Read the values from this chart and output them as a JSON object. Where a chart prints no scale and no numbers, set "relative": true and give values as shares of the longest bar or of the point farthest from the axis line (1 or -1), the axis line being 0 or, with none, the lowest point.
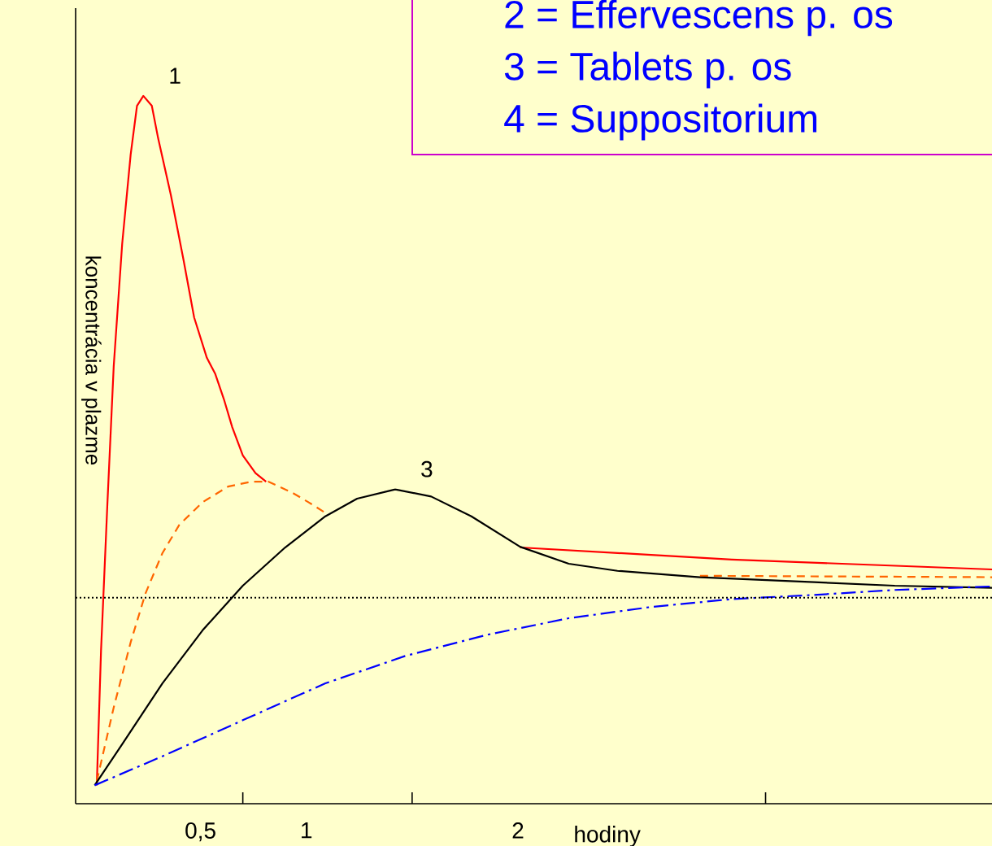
{
  "chart_data": {
    "type": "line",
    "relative": true,
    "xlabel": "hodiny",
    "ylabel": "koncentrácia v plazme",
    "xlim": [
      -0.09,
      4.24
    ],
    "xticks": [
      {
        "value": 0.5,
        "label": "0,5"
      },
      {
        "value": 1,
        "label": "1"
      },
      {
        "value": 2,
        "label": "2"
      },
      {
        "value": 0.7,
        "label": null
      },
      {
        "value": 1.5,
        "label": null
      },
      {
        "value": 3.17,
        "label": null
      }
    ],
    "tick_labels": "x",
    "marker": "none",
    "series": [
      {
        "name": "1",
        "color": "#ff0000",
        "line_style": "solid",
        "x": [
          0.01,
          0.03,
          0.06,
          0.09,
          0.13,
          0.17,
          0.2,
          0.23,
          0.27,
          0.3,
          0.36,
          0.42,
          0.47,
          0.53,
          0.57,
          0.61,
          0.65,
          0.7,
          0.76,
          0.81,
          1.4,
          2.01,
          3.01,
          4.24
        ],
        "values": [
          0.026,
          0.216,
          0.423,
          0.618,
          0.791,
          0.917,
          0.986,
          1,
          0.986,
          0.94,
          0.86,
          0.768,
          0.687,
          0.63,
          0.607,
          0.572,
          0.532,
          0.492,
          0.467,
          0.455,
          null,
          0.362,
          0.345,
          0.331
        ]
      },
      {
        "color": "#ff6600",
        "line_style": "dashed",
        "x": [
          0.01,
          0.09,
          0.17,
          0.24,
          0.32,
          0.4,
          0.51,
          0.63,
          0.74,
          0.82,
          0.93,
          1.01,
          1.09,
          2.5,
          2.86,
          4.24
        ],
        "values": [
          0.032,
          0.136,
          0.228,
          0.297,
          0.354,
          0.394,
          0.426,
          0.448,
          0.455,
          0.455,
          0.44,
          0.426,
          0.411,
          null,
          0.322,
          0.32
        ]
      },
      {
        "name": "3",
        "color": "#000000",
        "line_style": "solid",
        "x": [
          0,
          0.13,
          0.32,
          0.51,
          0.7,
          0.9,
          1.09,
          1.24,
          1.42,
          1.59,
          1.78,
          2.01,
          2.24,
          2.47,
          2.86,
          3.4,
          3.78,
          4.24
        ],
        "values": [
          0.026,
          0.084,
          0.17,
          0.245,
          0.308,
          0.362,
          0.406,
          0.431,
          0.444,
          0.434,
          0.406,
          0.363,
          0.339,
          0.329,
          0.32,
          0.313,
          0.308,
          0.305
        ]
      },
      {
        "color": "#0000ff",
        "line_style": "dashdot",
        "x": [
          0,
          0.32,
          0.7,
          1.09,
          1.47,
          1.86,
          2.24,
          2.63,
          3.01,
          3.4,
          3.78,
          4.24
        ],
        "values": [
          0.026,
          0.067,
          0.118,
          0.17,
          0.209,
          0.239,
          0.262,
          0.278,
          0.289,
          0.295,
          0.302,
          0.307
        ]
      }
    ],
    "ref_lines": [
      {
        "axis": "y",
        "value": 0.291,
        "color": "#000000",
        "line_style": "dotted"
      }
    ],
    "annotations": [
      "2 = Effervescens p. os",
      "3 = Tablets p. os",
      "4 = Suppositorium"
    ]
  }
}
